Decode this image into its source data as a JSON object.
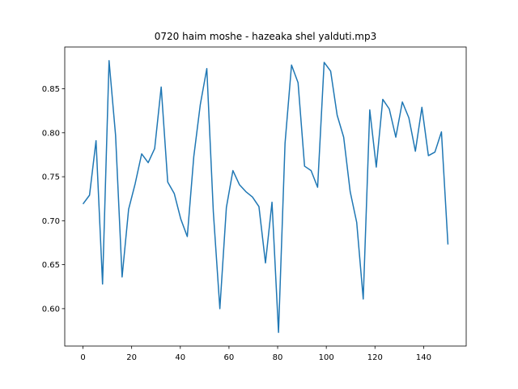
{
  "chart_data": {
    "type": "line",
    "title": "0720 haim moshe - hazeaka shel yalduti.mp3",
    "x": [
      0,
      2.68,
      5.36,
      8.04,
      10.71,
      13.39,
      16.07,
      18.75,
      21.43,
      24.11,
      26.79,
      29.46,
      32.14,
      34.82,
      37.5,
      40.18,
      42.86,
      45.54,
      48.21,
      50.89,
      53.57,
      56.25,
      58.93,
      61.61,
      64.29,
      66.96,
      69.64,
      72.32,
      75,
      77.68,
      80.36,
      83.04,
      85.71,
      88.39,
      91.07,
      93.75,
      96.43,
      99.11,
      101.79,
      104.46,
      107.14,
      109.82,
      112.5,
      115.18,
      117.86,
      120.54,
      123.21,
      125.89,
      128.57,
      131.25,
      133.93,
      136.61,
      139.29,
      141.96,
      144.64,
      147.32,
      150
    ],
    "series": [
      {
        "color": "#1f77b4",
        "values": [
          0.719,
          0.729,
          0.791,
          0.628,
          0.882,
          0.797,
          0.636,
          0.713,
          0.742,
          0.776,
          0.766,
          0.782,
          0.852,
          0.744,
          0.731,
          0.702,
          0.682,
          0.773,
          0.832,
          0.873,
          0.71,
          0.6,
          0.715,
          0.757,
          0.741,
          0.733,
          0.727,
          0.716,
          0.652,
          0.721,
          0.573,
          0.788,
          0.877,
          0.857,
          0.762,
          0.757,
          0.738,
          0.88,
          0.87,
          0.82,
          0.795,
          0.733,
          0.698,
          0.611,
          0.826,
          0.761,
          0.838,
          0.827,
          0.795,
          0.835,
          0.817,
          0.779,
          0.829,
          0.774,
          0.778,
          0.801,
          0.673
        ]
      }
    ],
    "xlim": [
      -7.5,
      157.5
    ],
    "ylim": [
      0.5575,
      0.8975
    ],
    "xticks": [
      0,
      20,
      40,
      60,
      80,
      100,
      120,
      140
    ],
    "yticks": [
      {
        "value": 0.6,
        "label": "0.60"
      },
      {
        "value": 0.65,
        "label": "0.65"
      },
      {
        "value": 0.7,
        "label": "0.70"
      },
      {
        "value": 0.75,
        "label": "0.75"
      },
      {
        "value": 0.8,
        "label": "0.80"
      },
      {
        "value": 0.85,
        "label": "0.85"
      }
    ],
    "grid": false
  }
}
